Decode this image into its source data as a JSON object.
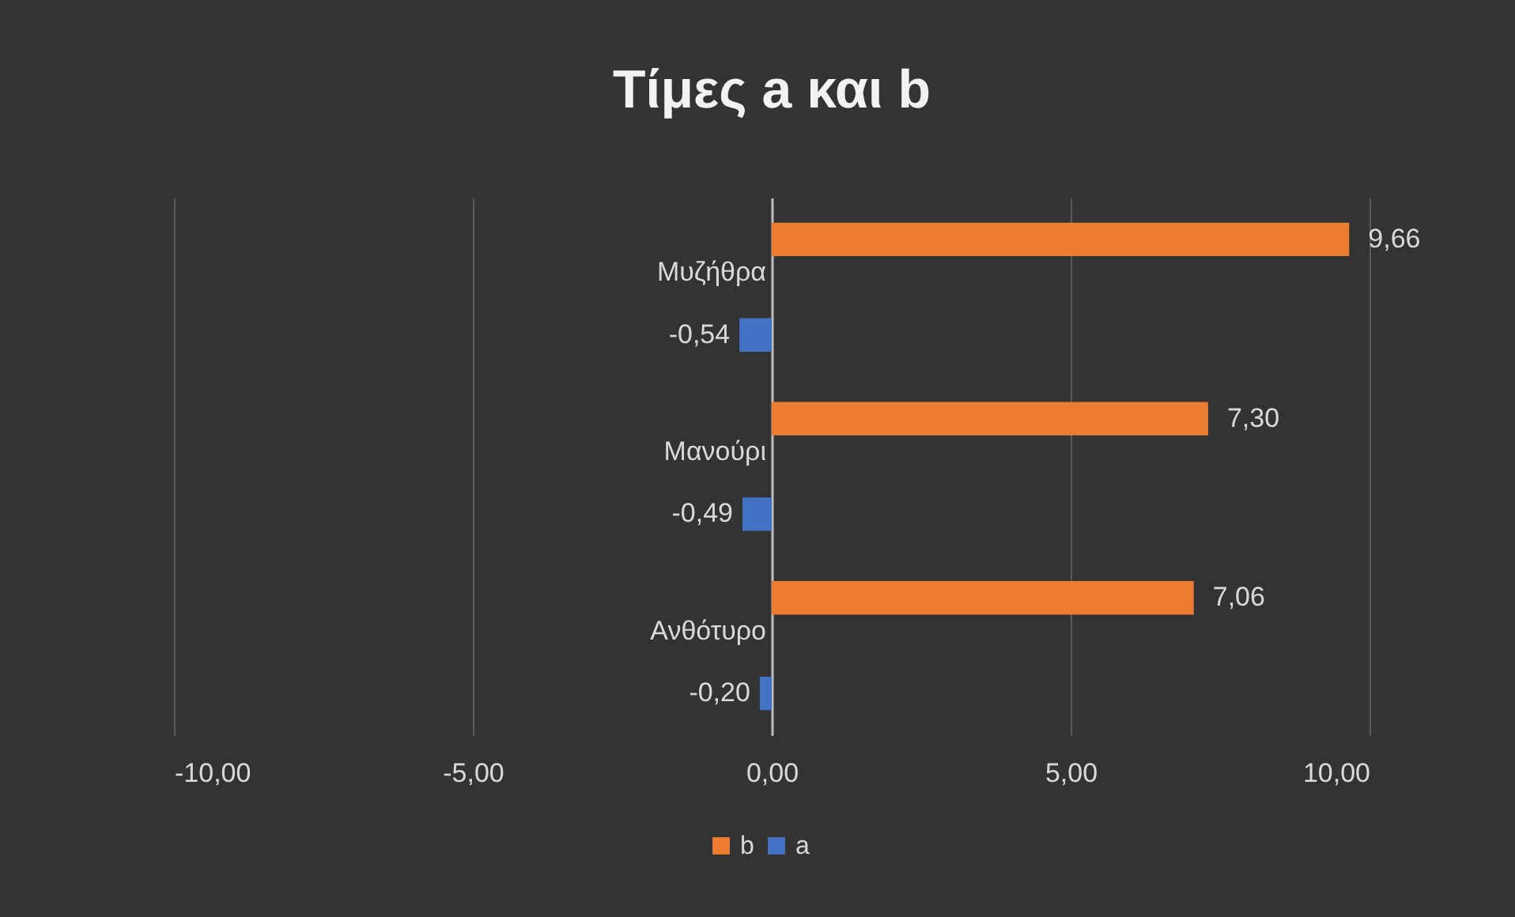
{
  "chart_data": {
    "type": "bar",
    "title": "Τίμες a και b",
    "orientation": "horizontal",
    "categories": [
      "Μυζήθρα",
      "Μανούρι",
      "Ανθότυρο"
    ],
    "series": [
      {
        "name": "b",
        "color": "#ed7d31",
        "values": [
          9.66,
          7.3,
          7.06
        ],
        "value_labels": [
          "9,66",
          "7,30",
          "7,06"
        ]
      },
      {
        "name": "a",
        "color": "#4472c4",
        "values": [
          -0.54,
          -0.49,
          -0.2
        ],
        "value_labels": [
          "-0,54",
          "-0,49",
          "-0,20"
        ]
      }
    ],
    "xlim": [
      -10,
      10
    ],
    "xticks": [
      {
        "value": -10,
        "label": "-10,00"
      },
      {
        "value": -5,
        "label": "-5,00"
      },
      {
        "value": 0,
        "label": "0,00"
      },
      {
        "value": 5,
        "label": "5,00"
      },
      {
        "value": 10,
        "label": "10,00"
      }
    ],
    "grid": "x",
    "legend": "bottom"
  }
}
